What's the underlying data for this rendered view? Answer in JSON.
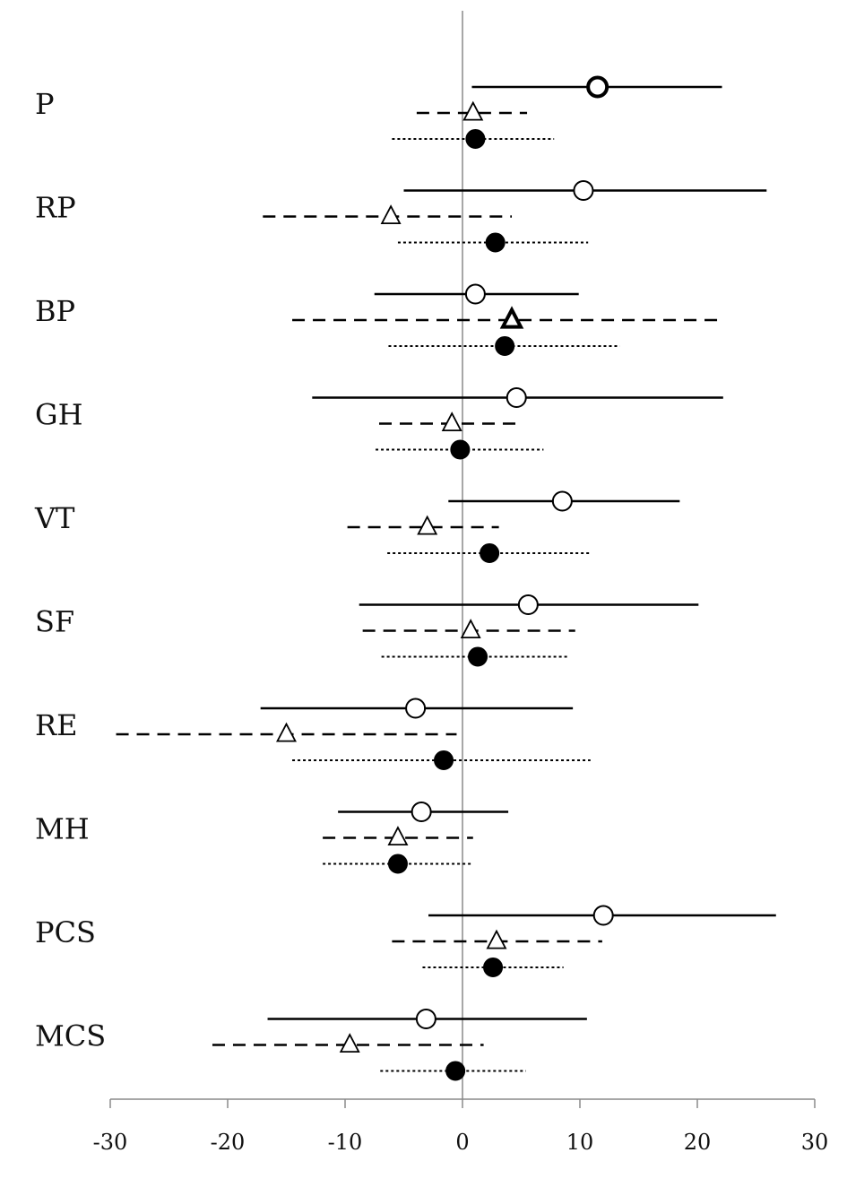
{
  "chart_data": {
    "type": "forest",
    "title": "",
    "xlabel": "",
    "ylabel": "",
    "xlim": [
      -30,
      30
    ],
    "x_ticks": [
      -30,
      -20,
      -10,
      0,
      10,
      20,
      30
    ],
    "x_tick_labels": [
      "-30",
      "-20",
      "-10",
      "0",
      "10",
      "20",
      "30"
    ],
    "reference_line": 0,
    "grid": false,
    "legend": "none",
    "categories": [
      "P",
      "RP",
      "BP",
      "GH",
      "VT",
      "SF",
      "RE",
      "MH",
      "PCS",
      "MCS"
    ],
    "series": [
      {
        "marker": "open-circle",
        "line_style": "solid",
        "estimate": [
          11.5,
          10.3,
          1.1,
          4.6,
          8.5,
          5.6,
          -4.0,
          -3.5,
          12.0,
          -3.1
        ],
        "lower": [
          0.8,
          -5.0,
          -7.5,
          -12.8,
          -1.2,
          -8.8,
          -17.2,
          -10.6,
          -2.9,
          -16.6
        ],
        "upper": [
          22.1,
          25.9,
          9.9,
          22.2,
          18.5,
          20.1,
          9.4,
          3.9,
          26.7,
          10.6
        ],
        "emphasized": [
          "P"
        ]
      },
      {
        "marker": "open-triangle",
        "line_style": "dashed",
        "estimate": [
          0.9,
          -6.1,
          4.2,
          -0.9,
          -3.0,
          0.7,
          -15.0,
          -5.5,
          2.9,
          -9.6
        ],
        "lower": [
          -3.9,
          -17.0,
          -14.5,
          -7.1,
          -9.8,
          -8.5,
          -29.5,
          -11.9,
          -6.0,
          -21.3
        ],
        "upper": [
          5.5,
          4.2,
          22.1,
          5.1,
          3.1,
          9.6,
          -0.5,
          0.9,
          11.9,
          1.8
        ],
        "emphasized": [
          "BP"
        ]
      },
      {
        "marker": "filled-circle",
        "line_style": "dotted",
        "estimate": [
          1.1,
          2.8,
          3.6,
          -0.2,
          2.3,
          1.3,
          -1.6,
          -5.5,
          2.6,
          -0.6
        ],
        "lower": [
          -6.0,
          -5.5,
          -6.3,
          -7.4,
          -6.4,
          -6.9,
          -14.5,
          -11.9,
          -3.4,
          -7.0
        ],
        "upper": [
          7.8,
          10.7,
          13.4,
          6.9,
          10.8,
          9.0,
          10.9,
          0.9,
          8.6,
          5.4
        ],
        "emphasized": []
      }
    ]
  }
}
